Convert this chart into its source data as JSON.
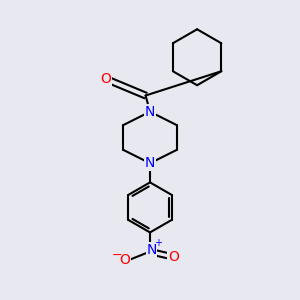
{
  "bg_color": "#e8e8f0",
  "bond_color": "#000000",
  "N_color": "#0000ff",
  "O_color": "#ff0000",
  "line_width": 1.5,
  "figsize": [
    3.0,
    3.0
  ],
  "dpi": 100,
  "xlim": [
    0,
    10
  ],
  "ylim": [
    0,
    10
  ]
}
